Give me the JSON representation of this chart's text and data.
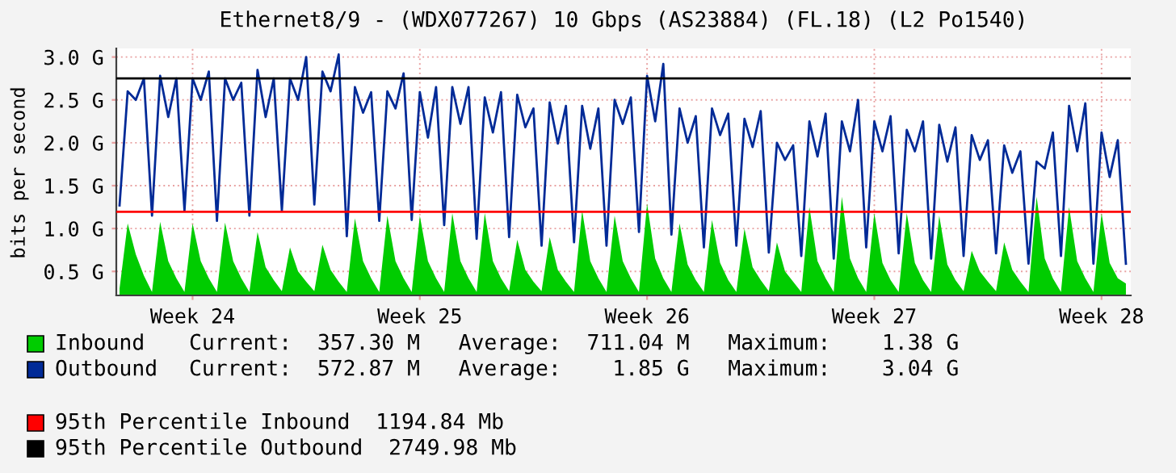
{
  "chart_data": {
    "type": "line",
    "title": "Ethernet8/9 - (WDX077267) 10 Gbps (AS23884) (FL.18) (L2 Po1540)",
    "ylabel": "bits per second",
    "categories": [
      null,
      null,
      null,
      null,
      null,
      null,
      null,
      null,
      null,
      "Week 24",
      null,
      null,
      null,
      null,
      null,
      null,
      null,
      null,
      null,
      null,
      null,
      null,
      null,
      null,
      null,
      null,
      null,
      null,
      null,
      null,
      null,
      null,
      null,
      null,
      null,
      null,
      null,
      "Week 25",
      null,
      null,
      null,
      null,
      null,
      null,
      null,
      null,
      null,
      null,
      null,
      null,
      null,
      null,
      null,
      null,
      null,
      null,
      null,
      null,
      null,
      null,
      null,
      null,
      null,
      null,
      null,
      "Week 26",
      null,
      null,
      null,
      null,
      null,
      null,
      null,
      null,
      null,
      null,
      null,
      null,
      null,
      null,
      null,
      null,
      null,
      null,
      null,
      null,
      null,
      null,
      null,
      null,
      null,
      null,
      null,
      "Week 27",
      null,
      null,
      null,
      null,
      null,
      null,
      null,
      null,
      null,
      null,
      null,
      null,
      null,
      null,
      null,
      null,
      null,
      null,
      null,
      null,
      null,
      null,
      null,
      null,
      null,
      null,
      null,
      "Week 28",
      null,
      null,
      null
    ],
    "ylim": [
      0.22,
      3.1
    ],
    "yticks": [
      {
        "value": 0.5,
        "label": "0.5 G"
      },
      {
        "value": 1.0,
        "label": "1.0 G"
      },
      {
        "value": 1.5,
        "label": "1.5 G"
      },
      {
        "value": 2.0,
        "label": "2.0 G"
      },
      {
        "value": 2.5,
        "label": "2.5 G"
      },
      {
        "value": 3.0,
        "label": "3.0 G"
      }
    ],
    "grid": true,
    "legend": "bottom",
    "series": [
      {
        "name": "Inbound",
        "type": "area",
        "color": "#00cc00",
        "values": [
          0.3,
          1.06,
          0.7,
          0.45,
          0.26,
          1.08,
          0.62,
          0.42,
          0.26,
          1.06,
          0.62,
          0.42,
          0.26,
          1.07,
          0.62,
          0.42,
          0.26,
          0.96,
          0.55,
          0.4,
          0.27,
          0.78,
          0.5,
          0.38,
          0.27,
          0.81,
          0.52,
          0.38,
          0.26,
          1.12,
          0.62,
          0.42,
          0.26,
          1.15,
          0.62,
          0.42,
          0.26,
          1.15,
          0.62,
          0.42,
          0.26,
          1.18,
          0.62,
          0.42,
          0.26,
          1.18,
          0.62,
          0.42,
          0.27,
          0.87,
          0.52,
          0.38,
          0.27,
          0.9,
          0.52,
          0.38,
          0.26,
          1.21,
          0.62,
          0.42,
          0.26,
          1.15,
          0.62,
          0.42,
          0.26,
          1.29,
          0.65,
          0.42,
          0.26,
          1.06,
          0.58,
          0.4,
          0.26,
          1.1,
          0.6,
          0.4,
          0.26,
          1.0,
          0.55,
          0.4,
          0.27,
          0.84,
          0.5,
          0.38,
          0.26,
          1.25,
          0.62,
          0.42,
          0.26,
          1.37,
          0.65,
          0.42,
          0.26,
          1.18,
          0.6,
          0.4,
          0.26,
          1.18,
          0.6,
          0.4,
          0.26,
          1.15,
          0.58,
          0.4,
          0.27,
          0.74,
          0.5,
          0.38,
          0.27,
          0.84,
          0.52,
          0.38,
          0.26,
          1.37,
          0.65,
          0.42,
          0.26,
          1.25,
          0.62,
          0.42,
          0.26,
          1.18,
          0.6,
          0.42,
          0.36
        ]
      },
      {
        "name": "Outbound",
        "color": "#002a97",
        "values": [
          1.27,
          2.6,
          2.5,
          2.75,
          1.15,
          2.78,
          2.3,
          2.75,
          1.21,
          2.75,
          2.5,
          2.83,
          1.09,
          2.75,
          2.5,
          2.7,
          1.15,
          2.85,
          2.3,
          2.75,
          1.21,
          2.75,
          2.5,
          3.0,
          1.28,
          2.83,
          2.6,
          3.03,
          0.91,
          2.65,
          2.35,
          2.59,
          1.09,
          2.6,
          2.4,
          2.81,
          1.1,
          2.59,
          2.06,
          2.65,
          1.04,
          2.65,
          2.22,
          2.65,
          0.88,
          2.53,
          2.12,
          2.59,
          0.9,
          2.56,
          2.18,
          2.4,
          0.8,
          2.47,
          1.99,
          2.43,
          0.84,
          2.43,
          1.93,
          2.4,
          0.8,
          2.5,
          2.22,
          2.53,
          0.96,
          2.78,
          2.25,
          2.92,
          0.93,
          2.4,
          2.0,
          2.31,
          0.78,
          2.4,
          2.09,
          2.34,
          0.8,
          2.28,
          1.95,
          2.37,
          0.72,
          2.0,
          1.8,
          1.97,
          0.68,
          2.25,
          1.84,
          2.34,
          0.65,
          2.25,
          1.9,
          2.5,
          0.78,
          2.25,
          1.9,
          2.31,
          0.71,
          2.15,
          1.9,
          2.25,
          0.65,
          2.21,
          1.78,
          2.18,
          0.68,
          2.09,
          1.8,
          2.03,
          0.71,
          1.97,
          1.65,
          1.9,
          0.59,
          1.78,
          1.7,
          2.12,
          0.68,
          2.43,
          1.9,
          2.46,
          0.59,
          2.12,
          1.6,
          2.03,
          0.59
        ]
      }
    ],
    "ref_lines": [
      {
        "axis": "y",
        "value": 1.19484,
        "label": "95th Percentile Inbound  1194.84 Mb",
        "color": "#ff0000"
      },
      {
        "axis": "y",
        "value": 2.74998,
        "label": "95th Percentile Outbound  2749.98 Mb",
        "color": "#000000"
      }
    ],
    "annotations": [
      "Current:  357.30 M   Average:  711.04 M   Maximum:    1.38 G",
      "Current:  572.87 M   Average:    1.85 G   Maximum:    3.04 G"
    ]
  }
}
